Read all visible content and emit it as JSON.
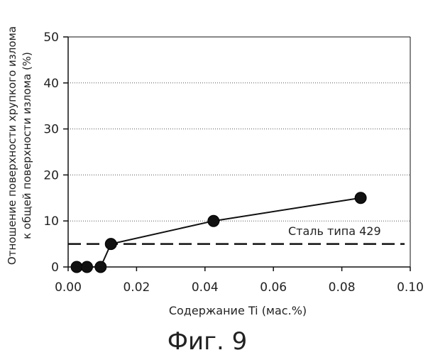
{
  "chart_data": {
    "type": "line",
    "xlabel": "Содержание Ti (мас.%)",
    "ylabel_lines": [
      "Отношение поверхности хрупкого излома",
      "к общей поверхности излома (%)"
    ],
    "xlim": [
      0,
      0.1
    ],
    "ylim": [
      0,
      50
    ],
    "x_ticks": [
      0.0,
      0.02,
      0.04,
      0.06,
      0.08,
      0.1
    ],
    "x_tick_labels": [
      "0.00",
      "0.02",
      "0.04",
      "0.06",
      "0.08",
      "0.10"
    ],
    "y_ticks": [
      0,
      10,
      20,
      30,
      40,
      50
    ],
    "y_tick_labels": [
      "0",
      "10",
      "20",
      "30",
      "40",
      "50"
    ],
    "grid": "horizontal dotted",
    "series": [
      {
        "x": [
          0.0025,
          0.0055,
          0.0095,
          0.0125,
          0.0425,
          0.0855
        ],
        "y": [
          0,
          0,
          0,
          5,
          10,
          15
        ],
        "color": "#111111",
        "marker": "filled-circle"
      }
    ],
    "reference_line": {
      "y": 5,
      "style": "dashed",
      "label": "Сталь типа 429"
    }
  },
  "figure_caption": "Фиг. 9"
}
